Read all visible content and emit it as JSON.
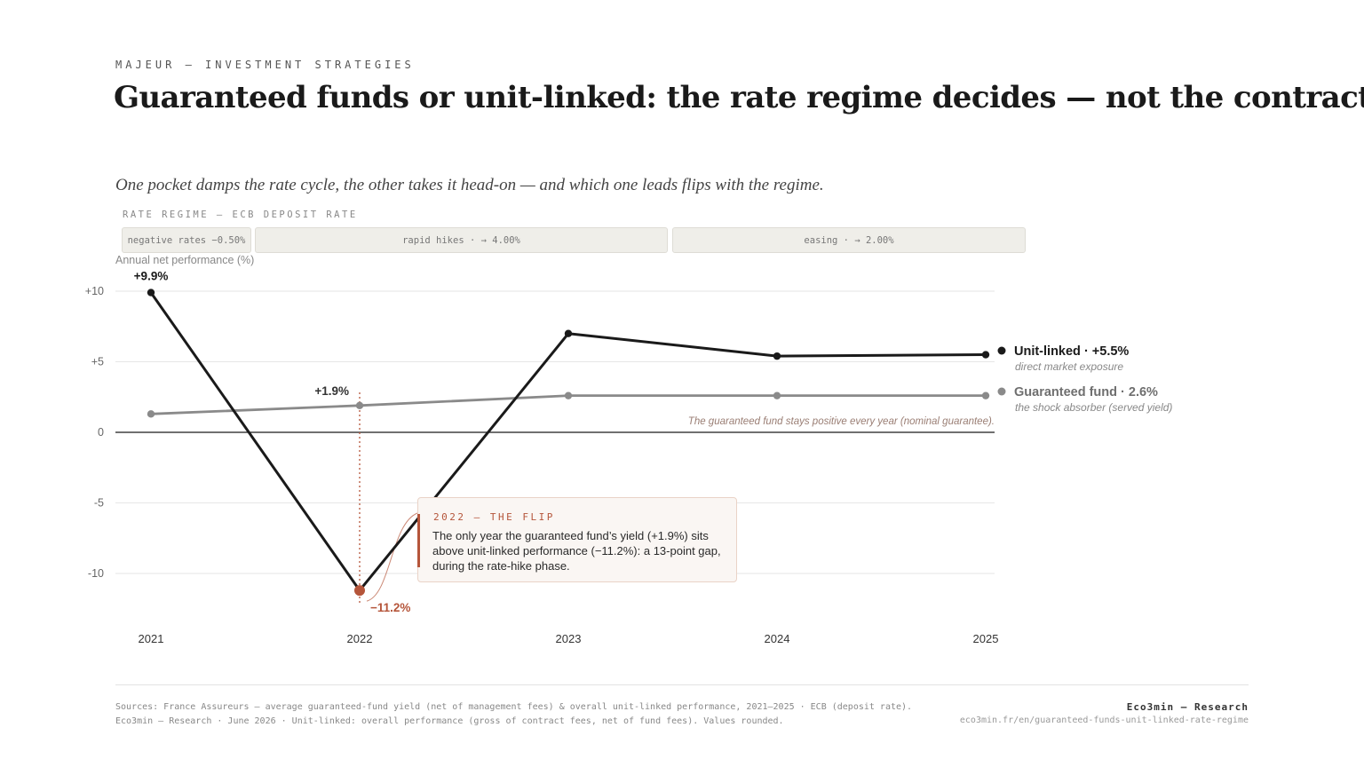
{
  "header": {
    "kicker": "MAJEUR — INVESTMENT STRATEGIES",
    "title": "Guaranteed funds or unit-linked: the rate regime decides — not the contract",
    "subtitle": "One pocket damps the rate cycle, the other takes it head-on — and which one leads flips with the regime."
  },
  "regime": {
    "label": "RATE REGIME — ECB DEPOSIT RATE",
    "phases": [
      {
        "label": "negative rates −0.50%"
      },
      {
        "label": "rapid hikes · → 4.00%"
      },
      {
        "label": "easing · → 2.00%"
      }
    ]
  },
  "chart_data": {
    "type": "line",
    "ylabel": "Annual net performance (%)",
    "x": [
      "2021",
      "2022",
      "2023",
      "2024",
      "2025"
    ],
    "ylim": [
      -13,
      10
    ],
    "yticks": [
      10,
      5,
      0,
      -5,
      -10
    ],
    "ytick_labels": [
      "+10",
      "+5",
      "0",
      "-5",
      "-10"
    ],
    "grid": true,
    "series": [
      {
        "name": "Unit-linked",
        "end_label": "Unit-linked · +5.5%",
        "sublabel": "direct market exposure",
        "values": [
          9.9,
          -11.2,
          7.0,
          5.4,
          5.5
        ],
        "color": "#1a1a1a"
      },
      {
        "name": "Guaranteed fund",
        "end_label": "Guaranteed fund · 2.6%",
        "sublabel": "the shock absorber (served yield)",
        "values": [
          1.3,
          1.9,
          2.6,
          2.6,
          2.6
        ],
        "color": "#8a8a8a"
      }
    ],
    "data_labels": [
      {
        "text": "+9.9%",
        "series": 0,
        "index": 0
      },
      {
        "text": "+1.9%",
        "series": 1,
        "index": 1
      },
      {
        "text": "−11.2%",
        "series": 0,
        "index": 1
      }
    ],
    "annotation": "The guaranteed fund stays positive every year (nominal guarantee).",
    "highlight_color": "#b5553a"
  },
  "callout": {
    "head": "2022 — THE FLIP",
    "body": "The only year the guaranteed fund’s yield (+1.9%) sits above unit-linked performance (−11.2%): a 13-point gap, during the rate-hike phase."
  },
  "footer": {
    "source_line1": "Sources: France Assureurs — average guaranteed-fund yield (net of management fees) & overall unit-linked performance, 2021–2025 · ECB (deposit rate).",
    "source_line2": "Eco3min — Research · June 2026 · Unit-linked: overall performance (gross of contract fees, net of fund fees). Values rounded.",
    "brand": "Eco3min — Research",
    "url": "eco3min.fr/en/guaranteed-funds-unit-linked-rate-regime"
  }
}
